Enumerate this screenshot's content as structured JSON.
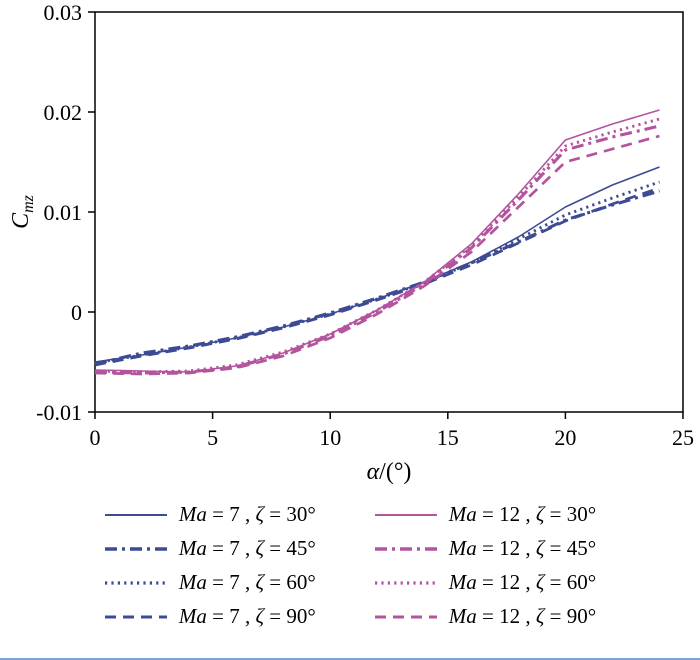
{
  "page": {
    "background": "#ffffff",
    "divider_color": "#7aa6d8"
  },
  "chart_data": {
    "type": "line",
    "title": "",
    "xlabel_parts": [
      {
        "t": "α",
        "i": true
      },
      {
        "t": "/(°)",
        "i": false
      }
    ],
    "ylabel": {
      "main": "C",
      "sub": "mz"
    },
    "xlim": [
      0,
      25
    ],
    "ylim": [
      -0.01,
      0.03
    ],
    "grid": false,
    "legend_position": "below",
    "axis_color": "#000000",
    "xticks": [
      {
        "v": 0,
        "label": "0"
      },
      {
        "v": 5,
        "label": "5"
      },
      {
        "v": 10,
        "label": "10"
      },
      {
        "v": 15,
        "label": "15"
      },
      {
        "v": 20,
        "label": "20"
      },
      {
        "v": 25,
        "label": "25"
      }
    ],
    "yticks": [
      {
        "v": -0.01,
        "label": "-0.01"
      },
      {
        "v": 0,
        "label": "0"
      },
      {
        "v": 0.01,
        "label": "0.01"
      },
      {
        "v": 0.02,
        "label": "0.02"
      },
      {
        "v": 0.03,
        "label": "0.03"
      }
    ],
    "x": [
      0,
      2,
      4,
      6,
      8,
      10,
      12,
      14,
      16,
      18,
      20,
      22,
      24
    ],
    "styles": {
      "solid": {
        "dash": "",
        "width": 1.6
      },
      "dashdot": {
        "dash": "12 5 3 5",
        "width": 3.1
      },
      "dot": {
        "dash": "2.2 4.2",
        "width": 2.9
      },
      "dash": {
        "dash": "11 7",
        "width": 2.7
      }
    },
    "legend_order": [
      0,
      4,
      1,
      5,
      2,
      6,
      3,
      7
    ],
    "series": [
      {
        "name": "Ma=7, ζ=30°",
        "color": "#3c4b94",
        "style": "solid",
        "label_parts": [
          {
            "t": "Ma",
            "i": true
          },
          {
            "t": " = 7 , ",
            "i": false
          },
          {
            "t": "ζ",
            "i": true
          },
          {
            "t": " = 30°",
            "i": false
          }
        ],
        "values": [
          -0.005,
          -0.0043,
          -0.0035,
          -0.0026,
          -0.0015,
          -0.0002,
          0.0013,
          0.003,
          0.005,
          0.0075,
          0.0105,
          0.0127,
          0.0145
        ]
      },
      {
        "name": "Ma=7, ζ=45°",
        "color": "#3c4b94",
        "style": "dashdot",
        "label_parts": [
          {
            "t": "Ma",
            "i": true
          },
          {
            "t": " = 7 , ",
            "i": false
          },
          {
            "t": "ζ",
            "i": true
          },
          {
            "t": " = 45°",
            "i": false
          }
        ],
        "values": [
          -0.0052,
          -0.0041,
          -0.0034,
          -0.0025,
          -0.0014,
          -0.0001,
          0.0014,
          0.003,
          0.0049,
          0.007,
          0.0092,
          0.0107,
          0.0121
        ]
      },
      {
        "name": "Ma=7, ζ=60°",
        "color": "#3c4b94",
        "style": "dot",
        "label_parts": [
          {
            "t": "Ma",
            "i": true
          },
          {
            "t": " = 7 , ",
            "i": false
          },
          {
            "t": "ζ",
            "i": true
          },
          {
            "t": " = 60°",
            "i": false
          }
        ],
        "values": [
          -0.0051,
          -0.0043,
          -0.0035,
          -0.0026,
          -0.0015,
          -0.0002,
          0.0013,
          0.0029,
          0.0049,
          0.0073,
          0.0097,
          0.0114,
          0.013
        ]
      },
      {
        "name": "Ma=7, ζ=90°",
        "color": "#3c4b94",
        "style": "dash",
        "label_parts": [
          {
            "t": "Ma",
            "i": true
          },
          {
            "t": " = 7 , ",
            "i": false
          },
          {
            "t": "ζ",
            "i": true
          },
          {
            "t": " = 90°",
            "i": false
          }
        ],
        "values": [
          -0.0053,
          -0.0044,
          -0.0036,
          -0.0027,
          -0.0016,
          -0.0003,
          0.0012,
          0.0028,
          0.0047,
          0.0069,
          0.0091,
          0.0108,
          0.0124
        ]
      },
      {
        "name": "Ma=12, ζ=30°",
        "color": "#b4549e",
        "style": "solid",
        "label_parts": [
          {
            "t": "Ma",
            "i": true
          },
          {
            "t": " = 12 , ",
            "i": false
          },
          {
            "t": "ζ",
            "i": true
          },
          {
            "t": " = 30°",
            "i": false
          }
        ],
        "values": [
          -0.0058,
          -0.0059,
          -0.006,
          -0.0054,
          -0.0041,
          -0.0022,
          0.0002,
          0.003,
          0.0068,
          0.0118,
          0.0172,
          0.0188,
          0.0202
        ]
      },
      {
        "name": "Ma=12, ζ=45°",
        "color": "#b4549e",
        "style": "dashdot",
        "label_parts": [
          {
            "t": "Ma",
            "i": true
          },
          {
            "t": " = 12 , ",
            "i": false
          },
          {
            "t": "ζ",
            "i": true
          },
          {
            "t": " = 45°",
            "i": false
          }
        ],
        "values": [
          -0.006,
          -0.0061,
          -0.006,
          -0.0055,
          -0.0042,
          -0.0024,
          0.0,
          0.0028,
          0.0064,
          0.0112,
          0.0162,
          0.0175,
          0.0186
        ]
      },
      {
        "name": "Ma=12, ζ=60°",
        "color": "#b4549e",
        "style": "dot",
        "label_parts": [
          {
            "t": "Ma",
            "i": true
          },
          {
            "t": " = 12 , ",
            "i": false
          },
          {
            "t": "ζ",
            "i": true
          },
          {
            "t": " = 60°",
            "i": false
          }
        ],
        "values": [
          -0.0059,
          -0.006,
          -0.0059,
          -0.0053,
          -0.004,
          -0.0022,
          0.0002,
          0.003,
          0.0066,
          0.0115,
          0.0166,
          0.018,
          0.0193
        ]
      },
      {
        "name": "Ma=12, ζ=90°",
        "color": "#b4549e",
        "style": "dash",
        "label_parts": [
          {
            "t": "Ma",
            "i": true
          },
          {
            "t": " = 12 , ",
            "i": false
          },
          {
            "t": "ζ",
            "i": true
          },
          {
            "t": " = 90°",
            "i": false
          }
        ],
        "values": [
          -0.0061,
          -0.0062,
          -0.0061,
          -0.0056,
          -0.0044,
          -0.0026,
          -0.0002,
          0.0026,
          0.006,
          0.0105,
          0.015,
          0.0163,
          0.0176
        ]
      }
    ]
  }
}
